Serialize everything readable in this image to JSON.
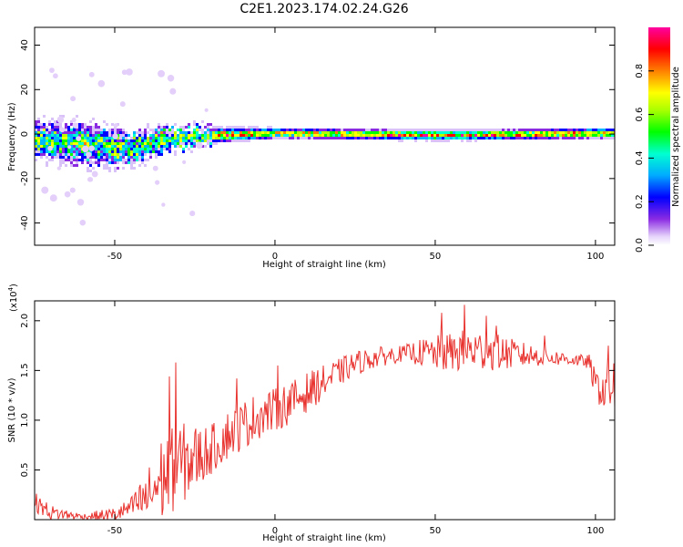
{
  "figure": {
    "title": "C2E1.2023.174.02.24.G26"
  },
  "chart_data": [
    {
      "type": "heatmap",
      "title": "C2E1.2023.174.02.24.G26",
      "xlabel": "Height of straight line (km)",
      "ylabel": "Frequency (Hz)",
      "xlim": [
        -75,
        106
      ],
      "ylim": [
        -50,
        48
      ],
      "xticks": [
        -50,
        0,
        50,
        100
      ],
      "yticks": [
        -40,
        -20,
        0,
        20,
        40
      ],
      "colorbar": {
        "label": "Normalized spectral amplitude",
        "range": [
          0.0,
          1.0
        ],
        "ticks": [
          "0.0",
          "0.2",
          "0.4",
          "0.6",
          "0.8"
        ],
        "colormap": [
          "#ffffff",
          "#d9c2f7",
          "#8a2be2",
          "#0000ff",
          "#00b4ff",
          "#00ffd0",
          "#00ff00",
          "#b4ff00",
          "#ffff00",
          "#ff8000",
          "#ff0000",
          "#ff00a0"
        ]
      },
      "ridge": {
        "description_values": [
          {
            "x": -72,
            "freq": -2,
            "spread": 7
          },
          {
            "x": -60,
            "freq": -4,
            "spread": 8
          },
          {
            "x": -45,
            "freq": -6,
            "spread": 6
          },
          {
            "x": -35,
            "freq": -2,
            "spread": 5
          },
          {
            "x": -20,
            "freq": 0,
            "spread": 3
          },
          {
            "x": 0,
            "freq": 1,
            "spread": 2
          },
          {
            "x": 50,
            "freq": 0,
            "spread": 2
          },
          {
            "x": 105,
            "freq": 1,
            "spread": 2
          }
        ]
      }
    },
    {
      "type": "line",
      "xlabel": "Height of straight line (km)",
      "ylabel": "SNR (10 * v/v)",
      "y_multiplier": "(x10",
      "y_multiplier_exp": "4",
      "y_multiplier_close": ")",
      "xlim": [
        -75,
        106
      ],
      "ylim": [
        0.0,
        2.2
      ],
      "xticks": [
        -50,
        0,
        50,
        100
      ],
      "yticks": [
        "0.5",
        "1.0",
        "1.5",
        "2.0"
      ],
      "color": "#e8322e",
      "trend": [
        {
          "x": -75,
          "y": 0.18
        },
        {
          "x": -70,
          "y": 0.07
        },
        {
          "x": -60,
          "y": 0.03
        },
        {
          "x": -50,
          "y": 0.05
        },
        {
          "x": -45,
          "y": 0.12
        },
        {
          "x": -40,
          "y": 0.22
        },
        {
          "x": -35,
          "y": 0.42
        },
        {
          "x": -30,
          "y": 0.55
        },
        {
          "x": -25,
          "y": 0.62
        },
        {
          "x": -20,
          "y": 0.7
        },
        {
          "x": -15,
          "y": 0.85
        },
        {
          "x": -10,
          "y": 0.95
        },
        {
          "x": -5,
          "y": 1.05
        },
        {
          "x": 0,
          "y": 1.1
        },
        {
          "x": 5,
          "y": 1.18
        },
        {
          "x": 10,
          "y": 1.28
        },
        {
          "x": 15,
          "y": 1.38
        },
        {
          "x": 20,
          "y": 1.48
        },
        {
          "x": 25,
          "y": 1.57
        },
        {
          "x": 30,
          "y": 1.62
        },
        {
          "x": 35,
          "y": 1.65
        },
        {
          "x": 40,
          "y": 1.67
        },
        {
          "x": 45,
          "y": 1.68
        },
        {
          "x": 50,
          "y": 1.67
        },
        {
          "x": 55,
          "y": 1.68
        },
        {
          "x": 60,
          "y": 1.7
        },
        {
          "x": 65,
          "y": 1.7
        },
        {
          "x": 70,
          "y": 1.68
        },
        {
          "x": 75,
          "y": 1.66
        },
        {
          "x": 80,
          "y": 1.65
        },
        {
          "x": 85,
          "y": 1.63
        },
        {
          "x": 90,
          "y": 1.62
        },
        {
          "x": 95,
          "y": 1.6
        },
        {
          "x": 98,
          "y": 1.58
        },
        {
          "x": 100,
          "y": 1.35
        },
        {
          "x": 103,
          "y": 1.3
        },
        {
          "x": 106,
          "y": 1.35
        }
      ],
      "noise": [
        {
          "x": -75,
          "amp": 0.1
        },
        {
          "x": -60,
          "amp": 0.03
        },
        {
          "x": -45,
          "amp": 0.1
        },
        {
          "x": -35,
          "amp": 0.45
        },
        {
          "x": -28,
          "amp": 0.4
        },
        {
          "x": -20,
          "amp": 0.25
        },
        {
          "x": -10,
          "amp": 0.25
        },
        {
          "x": 0,
          "amp": 0.22
        },
        {
          "x": 10,
          "amp": 0.2
        },
        {
          "x": 20,
          "amp": 0.14
        },
        {
          "x": 40,
          "amp": 0.08
        },
        {
          "x": 50,
          "amp": 0.18
        },
        {
          "x": 60,
          "amp": 0.22
        },
        {
          "x": 70,
          "amp": 0.18
        },
        {
          "x": 85,
          "amp": 0.08
        },
        {
          "x": 97,
          "amp": 0.06
        },
        {
          "x": 100,
          "amp": 0.15
        },
        {
          "x": 106,
          "amp": 0.3
        }
      ],
      "peaks": [
        {
          "x": -31,
          "y": 1.58
        },
        {
          "x": -33,
          "y": 1.44
        },
        {
          "x": -12,
          "y": 1.42
        },
        {
          "x": 1,
          "y": 1.55
        },
        {
          "x": 22,
          "y": 1.63
        },
        {
          "x": 52,
          "y": 2.08
        },
        {
          "x": 59,
          "y": 2.16
        },
        {
          "x": 66,
          "y": 2.05
        },
        {
          "x": 69,
          "y": 1.95
        },
        {
          "x": 84,
          "y": 1.85
        },
        {
          "x": 104,
          "y": 1.75
        }
      ]
    }
  ]
}
